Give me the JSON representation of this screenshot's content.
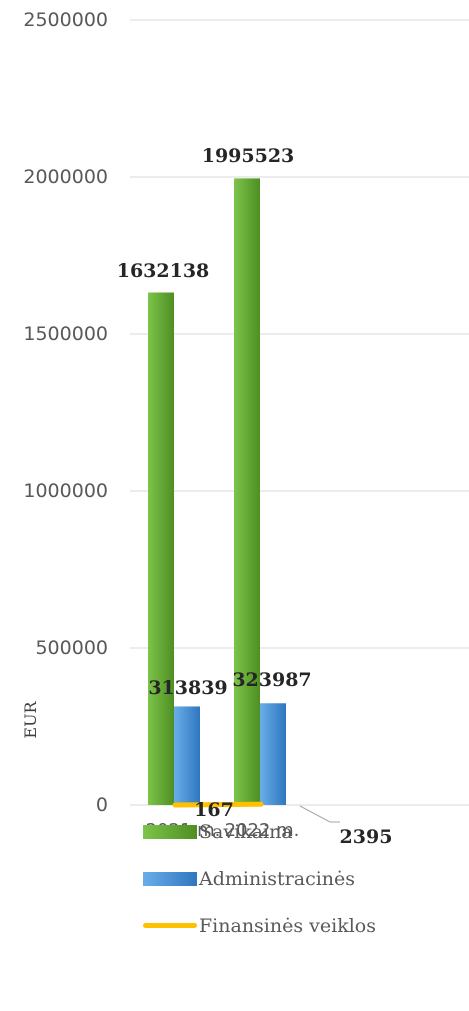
{
  "chart_data": {
    "type": "bar",
    "categories": [
      "2021 m.",
      "2022 m."
    ],
    "series": [
      {
        "name": "Savikaina",
        "values": [
          1632138,
          1995523
        ],
        "color": "#5aa02c",
        "kind": "bar",
        "labels": [
          "1632138",
          "1995523"
        ]
      },
      {
        "name": "Administracinės",
        "values": [
          313839,
          323987
        ],
        "color": "#4a8fd4",
        "kind": "bar",
        "labels": [
          "313839",
          "323987"
        ]
      },
      {
        "name": "Finansinės veiklos",
        "values": [
          167,
          2395
        ],
        "color": "#ffc000",
        "kind": "line",
        "labels": [
          "167",
          "2395"
        ]
      }
    ],
    "ylabel": "EUR",
    "ylim": [
      0,
      2500000
    ],
    "yticks": [
      "0",
      "500000",
      "1000000",
      "1500000",
      "2000000",
      "2500000"
    ],
    "grid": true,
    "legend_position": "bottom"
  }
}
